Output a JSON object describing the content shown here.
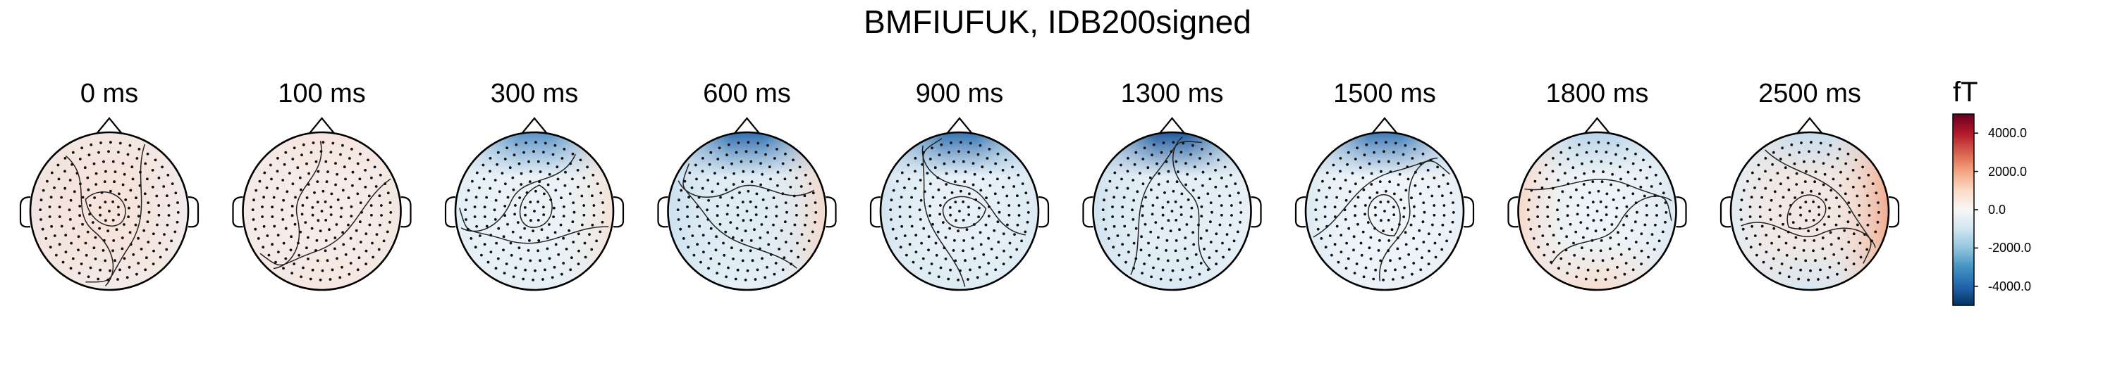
{
  "chart_data": {
    "type": "heatmap",
    "title": "BMFIUFUK, IDB200signed",
    "panels": [
      {
        "label": "0 ms",
        "time_ms": 0,
        "colors": {
          "front": "#f4e8e2",
          "left": "#f1e6e3",
          "right": "#f0eeef",
          "back": "#f3ece8",
          "center": "#f5e3dc"
        }
      },
      {
        "label": "100 ms",
        "time_ms": 100,
        "colors": {
          "front": "#f6e4dd",
          "left": "#f4e9e5",
          "right": "#f3e6e0",
          "back": "#f5e6e0",
          "center": "#f6ebe7"
        }
      },
      {
        "label": "300 ms",
        "time_ms": 300,
        "colors": {
          "front": "#5b93c6",
          "left": "#e1eef6",
          "right": "#f6e1d6",
          "back": "#e4eff5",
          "center": "#eaf2f6"
        }
      },
      {
        "label": "600 ms",
        "time_ms": 600,
        "colors": {
          "front": "#2f6faf",
          "left": "#cbe0ee",
          "right": "#f6d7c6",
          "back": "#e4eff6",
          "center": "#dfecf4"
        }
      },
      {
        "label": "900 ms",
        "time_ms": 900,
        "colors": {
          "front": "#3574b2",
          "left": "#d2e4f0",
          "right": "#dbe9f3",
          "back": "#dcebf4",
          "center": "#e6f0f6"
        }
      },
      {
        "label": "1300 ms",
        "time_ms": 1300,
        "colors": {
          "front": "#1f5a9c",
          "left": "#cfe2ef",
          "right": "#e7f0f6",
          "back": "#d9e9f3",
          "center": "#e3eef5"
        }
      },
      {
        "label": "1500 ms",
        "time_ms": 1500,
        "colors": {
          "front": "#3f7ab6",
          "left": "#dbe9f3",
          "right": "#e7f0f6",
          "back": "#eaf2f7",
          "center": "#eef4f7"
        }
      },
      {
        "label": "1800 ms",
        "time_ms": 1800,
        "colors": {
          "front": "#b9d4e8",
          "left": "#f7d7c7",
          "right": "#dae8f2",
          "back": "#f6ddd0",
          "center": "#edf3f6"
        }
      },
      {
        "label": "2500 ms",
        "time_ms": 2500,
        "colors": {
          "front": "#c7dded",
          "left": "#e1edf5",
          "right": "#f0a88a",
          "back": "#d7e7f2",
          "center": "#f2e7e2"
        }
      }
    ],
    "colorbar": {
      "unit": "fT",
      "range": [
        -5000,
        5000
      ],
      "ticks": [
        "4000.0",
        "2000.0",
        "0.0",
        "-2000.0",
        "-4000.0"
      ],
      "tick_values": [
        4000,
        2000,
        0,
        -2000,
        -4000
      ],
      "colormap": [
        "#053061",
        "#2166ac",
        "#4393c3",
        "#92c5de",
        "#d1e5f0",
        "#f7f7f7",
        "#fddbc7",
        "#f4a582",
        "#d6604d",
        "#b2182b",
        "#67001f"
      ]
    }
  }
}
